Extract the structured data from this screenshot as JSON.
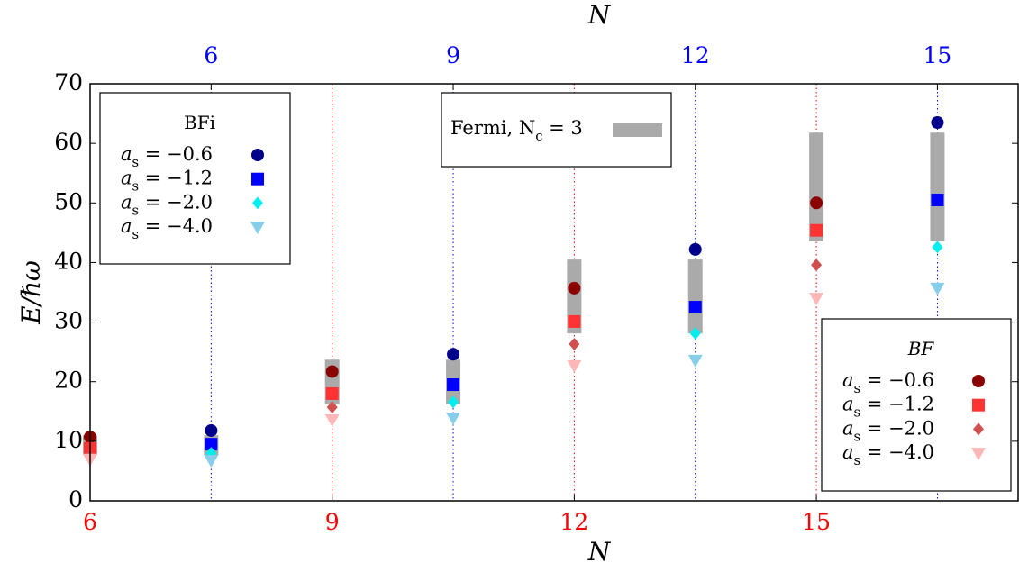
{
  "chart_data": {
    "type": "scatter",
    "xlabel": "N",
    "x2label": "N",
    "ylabel": "E/ℏω",
    "xlim": [
      6,
      17.5
    ],
    "xticks": [
      6,
      9,
      12,
      15
    ],
    "xtick_color": "#ff0000",
    "x2lim": [
      4.5,
      16
    ],
    "x2ticks": [
      6,
      9,
      12,
      15
    ],
    "x2tick_color": "#0000ff",
    "ylim": [
      0,
      70
    ],
    "yticks": [
      0,
      10,
      20,
      30,
      40,
      50,
      60,
      70
    ],
    "grid": true,
    "band": {
      "name": "Fermi, N_c = 3",
      "color": "#aaaaaa",
      "loc": "upper center",
      "x": [
        6,
        7.5,
        9,
        10.5,
        12,
        13.5,
        15,
        16.5
      ],
      "low": [
        7.7,
        7.7,
        16.2,
        16.2,
        28.1,
        28.1,
        43.6,
        43.6
      ],
      "high": [
        11.0,
        11.0,
        23.7,
        23.7,
        40.5,
        40.5,
        61.8,
        61.8
      ]
    },
    "groups": [
      {
        "title": "BFi",
        "axis": "x2",
        "loc": "upper left",
        "x": [
          6,
          9,
          12,
          15
        ],
        "series": [
          {
            "name": "a_s = −0.6",
            "color": "#00008b",
            "marker": "o",
            "values": [
              11.8,
              24.6,
              42.2,
              63.5
            ]
          },
          {
            "name": "a_s = −1.2",
            "color": "#0000ff",
            "marker": "s",
            "values": [
              9.5,
              19.5,
              32.5,
              50.5
            ]
          },
          {
            "name": "a_s = −2.0",
            "color": "#00eeee",
            "marker": "D",
            "values": [
              8.0,
              16.6,
              28.1,
              42.6
            ]
          },
          {
            "name": "a_s = −4.0",
            "color": "#87ceeb",
            "marker": "v",
            "values": [
              6.8,
              13.9,
              23.6,
              35.7
            ]
          }
        ]
      },
      {
        "title": "BF",
        "axis": "x",
        "loc": "lower right",
        "x": [
          6,
          9,
          12,
          15
        ],
        "series": [
          {
            "name": "a_s = −0.6",
            "color": "#8b0000",
            "marker": "o",
            "values": [
              10.7,
              21.7,
              35.7,
              50.0
            ]
          },
          {
            "name": "a_s = −1.2",
            "color": "#ff3333",
            "marker": "s",
            "values": [
              8.8,
              18.0,
              30.1,
              45.4
            ]
          },
          {
            "name": "a_s = −2.0",
            "color": "#d05050",
            "marker": "D",
            "values": [
              7.5,
              15.7,
              26.3,
              39.6
            ]
          },
          {
            "name": "a_s = −4.0",
            "color": "#ffb6b6",
            "marker": "v",
            "values": [
              7.0,
              13.6,
              22.7,
              34.0
            ]
          }
        ]
      }
    ]
  }
}
